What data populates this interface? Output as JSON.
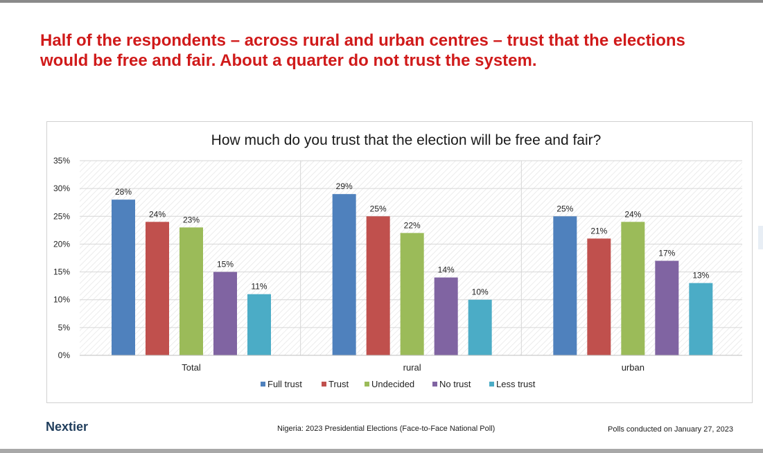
{
  "headline": "Half of the respondents – across rural and urban centres – trust that the elections would be free and fair.  About a quarter do not trust the system.",
  "logo_text": "Nextier",
  "footer": {
    "source": "Nigeria: 2023 Presidential Elections (Face-to-Face National Poll)",
    "date": "Polls conducted on January 27, 2023"
  },
  "chart_data": {
    "type": "bar",
    "title": "How much do you trust that the election will be free and fair?",
    "categories": [
      "Total",
      "rural",
      "urban"
    ],
    "series": [
      {
        "name": "Full trust",
        "color": "#4f81bd",
        "values": [
          28,
          29,
          25
        ],
        "labels": [
          "28%",
          "29%",
          "25%"
        ]
      },
      {
        "name": "Trust",
        "color": "#c0504d",
        "values": [
          24,
          25,
          21
        ],
        "labels": [
          "24%",
          "25%",
          "21%"
        ]
      },
      {
        "name": "Undecided",
        "color": "#9bbb59",
        "values": [
          23,
          22,
          24
        ],
        "labels": [
          "23%",
          "22%",
          "24%"
        ]
      },
      {
        "name": "No trust",
        "color": "#8064a2",
        "values": [
          15,
          14,
          17
        ],
        "labels": [
          "15%",
          "14%",
          "17%"
        ]
      },
      {
        "name": "Less trust",
        "color": "#4bacc6",
        "values": [
          11,
          10,
          13
        ],
        "labels": [
          "11%",
          "10%",
          "13%"
        ]
      }
    ],
    "y_ticks": [
      "0%",
      "5%",
      "10%",
      "15%",
      "20%",
      "25%",
      "30%",
      "35%"
    ],
    "ylim": [
      0,
      35
    ],
    "grid": true,
    "legend_position": "bottom"
  }
}
